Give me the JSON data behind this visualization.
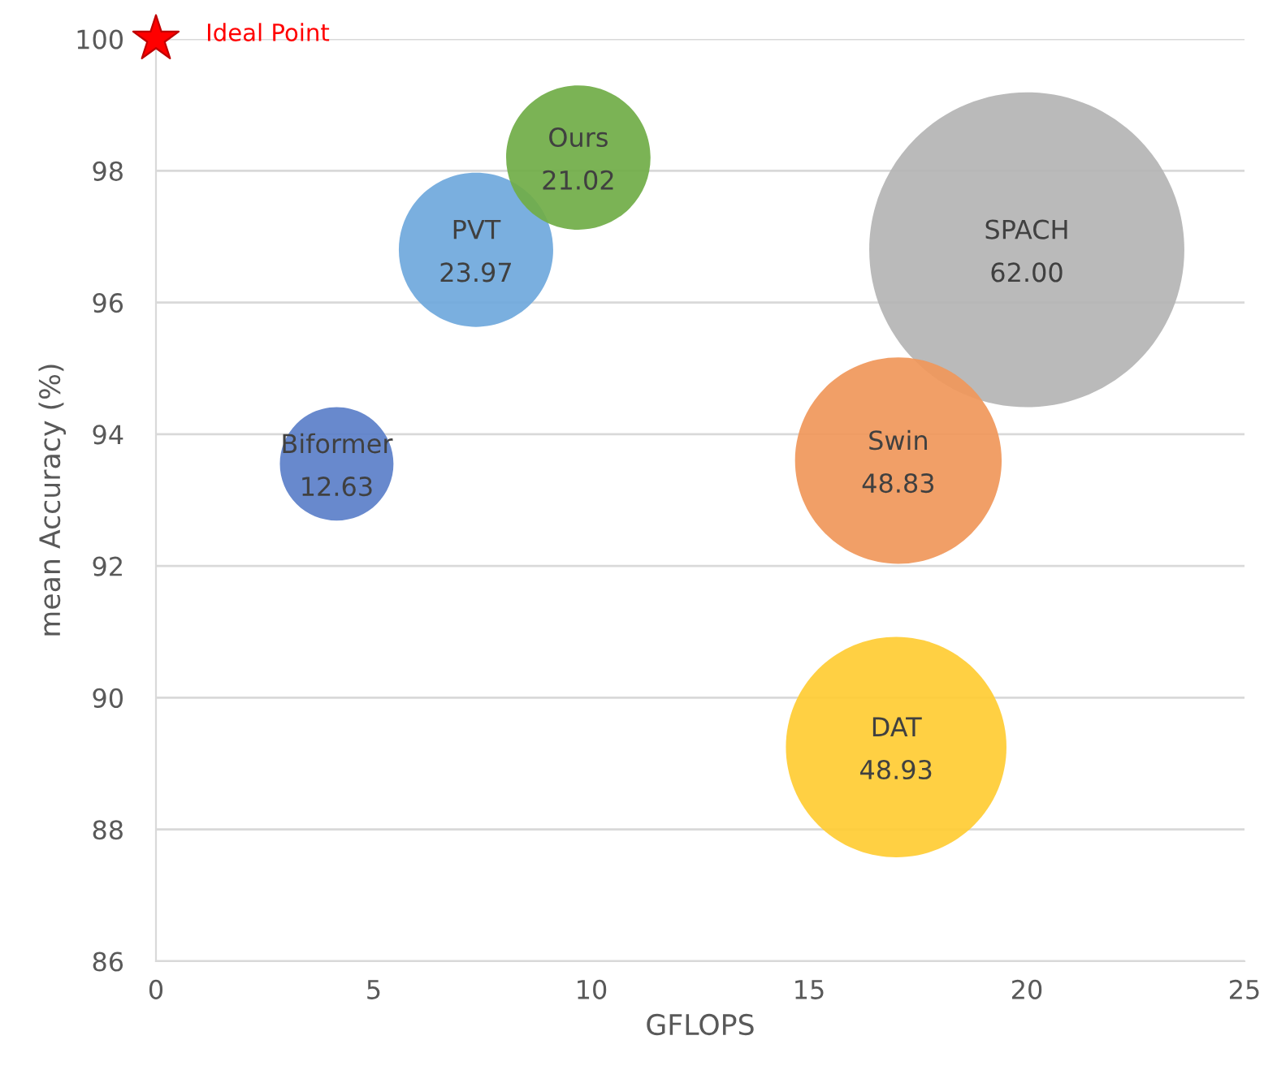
{
  "chart_data": {
    "type": "bubble",
    "xlabel": "GFLOPS",
    "ylabel": "mean Accuracy (%)",
    "xlim": [
      0,
      25
    ],
    "xticks": [
      0,
      5,
      10,
      15,
      20,
      25
    ],
    "ylim": [
      86,
      100
    ],
    "yticks": [
      86,
      88,
      90,
      92,
      94,
      96,
      98,
      100
    ],
    "grid": "y",
    "legend": false,
    "annotations": [
      {
        "text": "12.63",
        "x": 4.15,
        "y": 93.55
      },
      {
        "text": "23.97",
        "x": 7.35,
        "y": 96.8
      },
      {
        "text": "21.02",
        "x": 9.7,
        "y": 98.2
      },
      {
        "text": "62.00",
        "x": 20.0,
        "y": 96.8
      },
      {
        "text": "48.83",
        "x": 17.05,
        "y": 93.6
      },
      {
        "text": "48.93",
        "x": 17.0,
        "y": 89.25
      }
    ],
    "series": [
      {
        "name": "Ideal Point",
        "type": "scatter",
        "marker": "star",
        "color": "#ff0000",
        "x": [
          0
        ],
        "values": [
          100
        ]
      },
      {
        "name": "Biformer",
        "color": "#5b7fc9",
        "x": [
          4.15
        ],
        "values": [
          93.55
        ],
        "sizes": [
          0.13
        ]
      },
      {
        "name": "PVT",
        "color": "#6fa8dc",
        "x": [
          7.35
        ],
        "values": [
          96.8
        ],
        "sizes": [
          0.24
        ]
      },
      {
        "name": "Ours",
        "color": "#70ad47",
        "x": [
          9.7
        ],
        "values": [
          98.2
        ],
        "sizes": [
          0.21
        ]
      },
      {
        "name": "SPACH",
        "color": "#b4b4b4",
        "x": [
          20.0
        ],
        "values": [
          96.8
        ],
        "sizes": [
          1
        ]
      },
      {
        "name": "Swin",
        "color": "#f0975a",
        "x": [
          17.05
        ],
        "values": [
          93.6
        ],
        "sizes": [
          0.43
        ]
      },
      {
        "name": "DAT",
        "color": "#ffcc33",
        "x": [
          17.0
        ],
        "values": [
          89.25
        ],
        "sizes": [
          0.49
        ]
      }
    ]
  }
}
